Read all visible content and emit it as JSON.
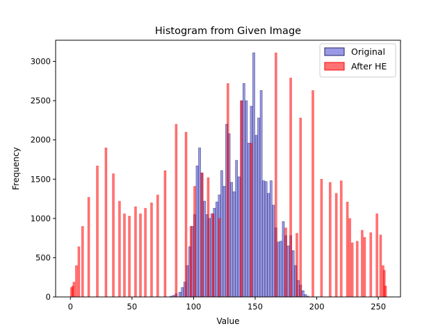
{
  "chart_data": {
    "type": "bar",
    "title": "Histogram from Given Image",
    "xlabel": "Value",
    "ylabel": "Frequency",
    "xlim": [
      -12,
      268
    ],
    "ylim": [
      0,
      3270
    ],
    "xticks": [
      0,
      50,
      100,
      150,
      200,
      250
    ],
    "yticks": [
      0,
      500,
      1000,
      1500,
      2000,
      2500,
      3000
    ],
    "legend_position": "top-right",
    "series": [
      {
        "name": "Original",
        "color": "#3333cc",
        "edge_color": "#222266",
        "alpha": 0.5,
        "points": [
          [
            81,
            10
          ],
          [
            83,
            20
          ],
          [
            85,
            40
          ],
          [
            88,
            60
          ],
          [
            90,
            120
          ],
          [
            92,
            190
          ],
          [
            94,
            400
          ],
          [
            96,
            640
          ],
          [
            98,
            900
          ],
          [
            100,
            1050
          ],
          [
            102,
            1670
          ],
          [
            104,
            1900
          ],
          [
            106,
            1580
          ],
          [
            108,
            1220
          ],
          [
            110,
            1050
          ],
          [
            112,
            1000
          ],
          [
            114,
            1060
          ],
          [
            116,
            1130
          ],
          [
            118,
            1210
          ],
          [
            120,
            1300
          ],
          [
            122,
            1610
          ],
          [
            124,
            1410
          ],
          [
            126,
            2200
          ],
          [
            128,
            2080
          ],
          [
            130,
            1460
          ],
          [
            132,
            1340
          ],
          [
            134,
            1740
          ],
          [
            136,
            1530
          ],
          [
            138,
            2500
          ],
          [
            140,
            2720
          ],
          [
            142,
            2500
          ],
          [
            144,
            1960
          ],
          [
            146,
            2430
          ],
          [
            148,
            3110
          ],
          [
            150,
            2060
          ],
          [
            152,
            2280
          ],
          [
            154,
            2630
          ],
          [
            156,
            1480
          ],
          [
            158,
            1470
          ],
          [
            160,
            1320
          ],
          [
            162,
            1480
          ],
          [
            164,
            1170
          ],
          [
            166,
            880
          ],
          [
            168,
            700
          ],
          [
            170,
            710
          ],
          [
            172,
            960
          ],
          [
            174,
            780
          ],
          [
            176,
            650
          ],
          [
            178,
            780
          ],
          [
            180,
            590
          ],
          [
            182,
            400
          ],
          [
            184,
            210
          ],
          [
            186,
            150
          ],
          [
            188,
            80
          ],
          [
            190,
            30
          ],
          [
            192,
            10
          ]
        ]
      },
      {
        "name": "After HE",
        "color": "#ff0000",
        "edge_color": "#ff0000",
        "alpha": 0.55,
        "points": [
          [
            0,
            120
          ],
          [
            1,
            140
          ],
          [
            2,
            190
          ],
          [
            4,
            400
          ],
          [
            6,
            640
          ],
          [
            9,
            900
          ],
          [
            14,
            1270
          ],
          [
            21,
            1670
          ],
          [
            28,
            1900
          ],
          [
            34,
            1570
          ],
          [
            39,
            1220
          ],
          [
            43,
            1060
          ],
          [
            47,
            1030
          ],
          [
            52,
            1150
          ],
          [
            56,
            1060
          ],
          [
            60,
            1130
          ],
          [
            65,
            1200
          ],
          [
            70,
            1300
          ],
          [
            76,
            1610
          ],
          [
            85,
            2200
          ],
          [
            93,
            2100
          ],
          [
            97,
            900
          ],
          [
            100,
            1410
          ],
          [
            106,
            1580
          ],
          [
            111,
            1520
          ],
          [
            115,
            1060
          ],
          [
            120,
            1000
          ],
          [
            127,
            2720
          ],
          [
            138,
            2500
          ],
          [
            146,
            1960
          ],
          [
            166,
            3110
          ],
          [
            174,
            880
          ],
          [
            178,
            2790
          ],
          [
            183,
            810
          ],
          [
            186,
            2280
          ],
          [
            196,
            2630
          ],
          [
            203,
            1500
          ],
          [
            210,
            1460
          ],
          [
            215,
            1320
          ],
          [
            219,
            1480
          ],
          [
            224,
            1210
          ],
          [
            226,
            1000
          ],
          [
            228,
            690
          ],
          [
            232,
            710
          ],
          [
            236,
            850
          ],
          [
            238,
            760
          ],
          [
            243,
            820
          ],
          [
            248,
            1060
          ],
          [
            251,
            790
          ],
          [
            253,
            400
          ],
          [
            254,
            340
          ],
          [
            255,
            140
          ]
        ]
      }
    ]
  }
}
